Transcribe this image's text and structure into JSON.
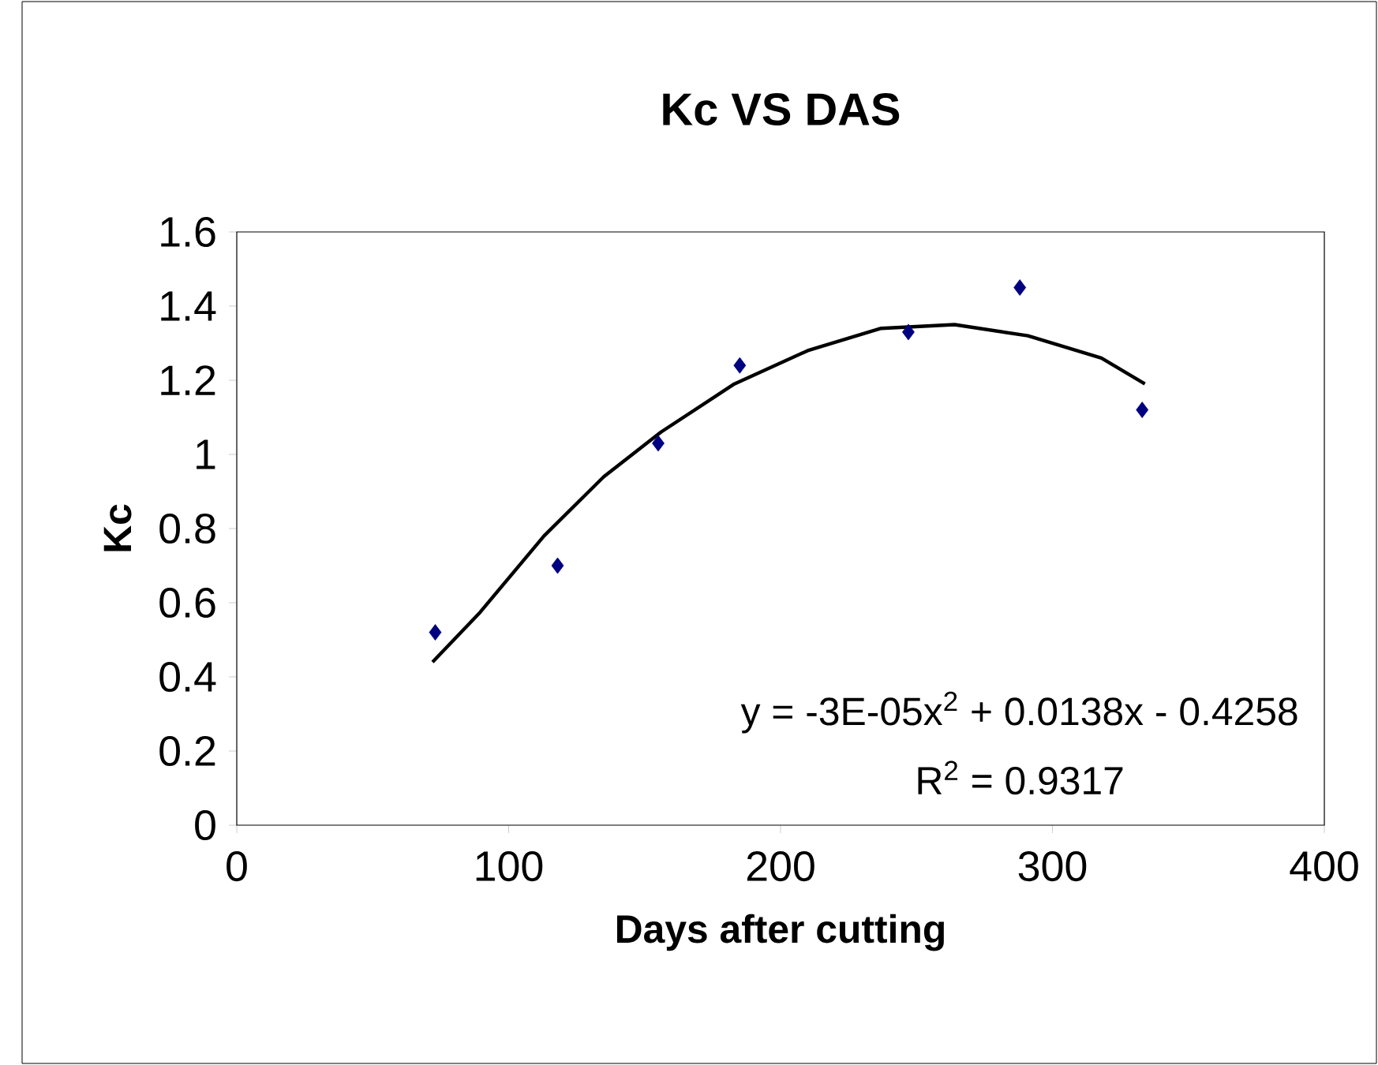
{
  "chart_data": {
    "type": "scatter",
    "title": "Kc VS DAS",
    "xlabel": "Days after cutting",
    "ylabel": "Kc",
    "xlim": [
      0,
      400
    ],
    "xticks": [
      0,
      100,
      200,
      300,
      400
    ],
    "ylim": [
      0,
      1.6
    ],
    "yticks": [
      0,
      0.2,
      0.4,
      0.6,
      0.8,
      1,
      1.2,
      1.4,
      1.6
    ],
    "grid": false,
    "marker": "diamond",
    "annotations": [
      "y = -3E-05x$^{2}$ + 0.0138x - 0.4258",
      "R$^{2}$ = 0.9317"
    ],
    "series": [
      {
        "color": "#000080",
        "x": [
          73,
          118,
          155,
          185,
          247,
          288,
          333
        ],
        "values": [
          0.52,
          0.7,
          1.03,
          1.24,
          1.33,
          1.45,
          1.12
        ]
      },
      {
        "type": "line",
        "color": "#000000",
        "marker": "none",
        "line_style": "solid",
        "x": [
          72,
          89,
          113,
          135,
          156,
          183,
          210,
          237,
          264,
          291,
          318,
          334
        ],
        "values": [
          0.44,
          0.57,
          0.78,
          0.94,
          1.06,
          1.19,
          1.28,
          1.34,
          1.35,
          1.32,
          1.26,
          1.19
        ]
      }
    ]
  }
}
